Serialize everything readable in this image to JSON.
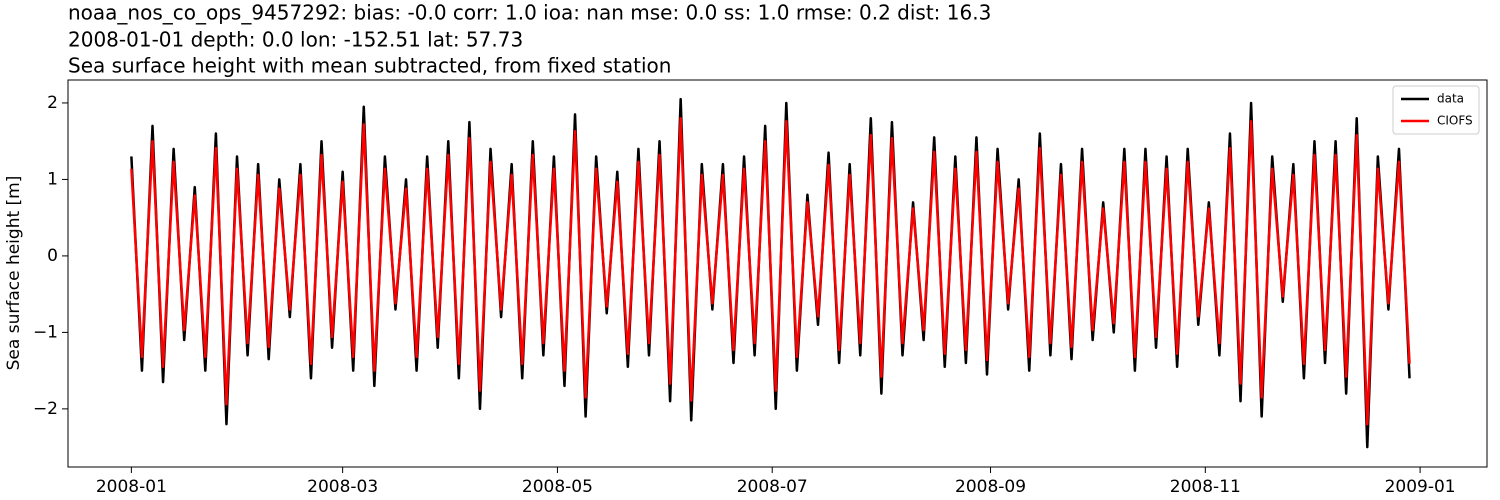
{
  "chart_data": {
    "type": "line",
    "title_lines": [
      "noaa_nos_co_ops_9457292: bias: -0.0  corr: 1.0  ioa: nan  mse: 0.0  ss: 1.0  rmse: 0.2  dist: 16.3",
      "2008-01-01 depth: 0.0 lon: -152.51 lat: 57.73",
      "Sea surface height with mean subtracted, from fixed station"
    ],
    "y_label": "Sea surface height [m]",
    "legend_position": "upper right",
    "xlim": [
      "2007-12-14",
      "2009-01-20"
    ],
    "xticks": [
      {
        "value": "2008-01-01",
        "label": "2008-01"
      },
      {
        "value": "2008-03-01",
        "label": "2008-03"
      },
      {
        "value": "2008-05-01",
        "label": "2008-05"
      },
      {
        "value": "2008-07-01",
        "label": "2008-07"
      },
      {
        "value": "2008-09-01",
        "label": "2008-09"
      },
      {
        "value": "2008-11-01",
        "label": "2008-11"
      },
      {
        "value": "2009-01-01",
        "label": "2009-01"
      }
    ],
    "ylim": [
      -2.76,
      2.3
    ],
    "yticks": [
      {
        "value": -2,
        "label": "−2"
      },
      {
        "value": -1,
        "label": "−1"
      },
      0,
      1,
      2
    ],
    "x": [
      "2008-01-01",
      "2008-01-04",
      "2008-01-07",
      "2008-01-10",
      "2008-01-13",
      "2008-01-16",
      "2008-01-19",
      "2008-01-22",
      "2008-01-25",
      "2008-01-28",
      "2008-01-31",
      "2008-02-03",
      "2008-02-06",
      "2008-02-09",
      "2008-02-12",
      "2008-02-15",
      "2008-02-18",
      "2008-02-21",
      "2008-02-24",
      "2008-02-27",
      "2008-03-01",
      "2008-03-04",
      "2008-03-07",
      "2008-03-10",
      "2008-03-13",
      "2008-03-16",
      "2008-03-19",
      "2008-03-22",
      "2008-03-25",
      "2008-03-28",
      "2008-03-31",
      "2008-04-03",
      "2008-04-06",
      "2008-04-09",
      "2008-04-12",
      "2008-04-15",
      "2008-04-18",
      "2008-04-21",
      "2008-04-24",
      "2008-04-27",
      "2008-04-30",
      "2008-05-03",
      "2008-05-06",
      "2008-05-09",
      "2008-05-12",
      "2008-05-15",
      "2008-05-18",
      "2008-05-21",
      "2008-05-24",
      "2008-05-27",
      "2008-05-30",
      "2008-06-02",
      "2008-06-05",
      "2008-06-08",
      "2008-06-11",
      "2008-06-14",
      "2008-06-17",
      "2008-06-20",
      "2008-06-23",
      "2008-06-26",
      "2008-06-29",
      "2008-07-02",
      "2008-07-05",
      "2008-07-08",
      "2008-07-11",
      "2008-07-14",
      "2008-07-17",
      "2008-07-20",
      "2008-07-23",
      "2008-07-26",
      "2008-07-29",
      "2008-08-01",
      "2008-08-04",
      "2008-08-07",
      "2008-08-10",
      "2008-08-13",
      "2008-08-16",
      "2008-08-19",
      "2008-08-22",
      "2008-08-25",
      "2008-08-28",
      "2008-08-31",
      "2008-09-03",
      "2008-09-06",
      "2008-09-09",
      "2008-09-12",
      "2008-09-15",
      "2008-09-18",
      "2008-09-21",
      "2008-09-24",
      "2008-09-27",
      "2008-09-30",
      "2008-10-03",
      "2008-10-06",
      "2008-10-09",
      "2008-10-12",
      "2008-10-15",
      "2008-10-18",
      "2008-10-21",
      "2008-10-24",
      "2008-10-27",
      "2008-10-30",
      "2008-11-02",
      "2008-11-05",
      "2008-11-08",
      "2008-11-11",
      "2008-11-14",
      "2008-11-17",
      "2008-11-20",
      "2008-11-23",
      "2008-11-26",
      "2008-11-29",
      "2008-12-02",
      "2008-12-05",
      "2008-12-08",
      "2008-12-11",
      "2008-12-14",
      "2008-12-17",
      "2008-12-20",
      "2008-12-23",
      "2008-12-26",
      "2008-12-29"
    ],
    "series": [
      {
        "name": "data",
        "color": "#000000",
        "values": [
          1.3,
          -1.5,
          1.7,
          -1.65,
          1.4,
          -1.1,
          0.9,
          -1.5,
          1.6,
          -2.2,
          1.3,
          -1.3,
          1.2,
          -1.35,
          1.0,
          -0.8,
          1.2,
          -1.6,
          1.5,
          -1.2,
          1.1,
          -1.5,
          1.95,
          -1.7,
          1.3,
          -0.7,
          1.0,
          -1.5,
          1.3,
          -1.2,
          1.5,
          -1.6,
          1.75,
          -2.0,
          1.4,
          -0.8,
          1.2,
          -1.6,
          1.5,
          -1.3,
          1.3,
          -1.7,
          1.85,
          -2.1,
          1.3,
          -0.75,
          1.1,
          -1.45,
          1.4,
          -1.3,
          1.5,
          -1.9,
          2.05,
          -2.15,
          1.2,
          -0.7,
          1.2,
          -1.4,
          1.3,
          -1.3,
          1.7,
          -2.0,
          2.0,
          -1.5,
          0.8,
          -0.9,
          1.35,
          -1.4,
          1.2,
          -1.3,
          1.8,
          -1.8,
          1.75,
          -1.3,
          0.7,
          -1.1,
          1.55,
          -1.45,
          1.3,
          -1.4,
          1.55,
          -1.55,
          1.4,
          -0.7,
          1.0,
          -1.5,
          1.6,
          -1.3,
          1.2,
          -1.35,
          1.4,
          -1.1,
          0.7,
          -1.0,
          1.4,
          -1.5,
          1.4,
          -1.2,
          1.3,
          -1.45,
          1.4,
          -0.9,
          0.7,
          -1.3,
          1.6,
          -1.9,
          2.0,
          -2.1,
          1.3,
          -0.6,
          1.2,
          -1.6,
          1.5,
          -1.4,
          1.5,
          -1.8,
          1.8,
          -2.5,
          1.3,
          -0.7,
          1.4,
          -1.6
        ]
      },
      {
        "name": "CIOFS",
        "color": "#ff0000",
        "values": [
          1.14,
          -1.32,
          1.5,
          -1.45,
          1.23,
          -0.97,
          0.79,
          -1.32,
          1.41,
          -1.94,
          1.14,
          -1.14,
          1.06,
          -1.19,
          0.88,
          -0.7,
          1.06,
          -1.41,
          1.32,
          -1.06,
          0.97,
          -1.32,
          1.72,
          -1.5,
          1.14,
          -0.62,
          0.88,
          -1.32,
          1.14,
          -1.06,
          1.32,
          -1.41,
          1.54,
          -1.76,
          1.23,
          -0.7,
          1.06,
          -1.41,
          1.32,
          -1.14,
          1.14,
          -1.5,
          1.63,
          -1.85,
          1.14,
          -0.66,
          0.97,
          -1.28,
          1.23,
          -1.14,
          1.32,
          -1.67,
          1.8,
          -1.89,
          1.06,
          -0.62,
          1.06,
          -1.23,
          1.14,
          -1.14,
          1.5,
          -1.76,
          1.76,
          -1.32,
          0.7,
          -0.79,
          1.19,
          -1.23,
          1.06,
          -1.14,
          1.58,
          -1.58,
          1.54,
          -1.14,
          0.62,
          -0.97,
          1.36,
          -1.28,
          1.14,
          -1.23,
          1.36,
          -1.36,
          1.23,
          -0.62,
          0.88,
          -1.32,
          1.41,
          -1.14,
          1.06,
          -1.19,
          1.23,
          -0.97,
          0.62,
          -0.88,
          1.23,
          -1.32,
          1.23,
          -1.06,
          1.14,
          -1.28,
          1.23,
          -0.79,
          0.62,
          -1.14,
          1.41,
          -1.67,
          1.76,
          -1.85,
          1.14,
          -0.53,
          1.06,
          -1.41,
          1.32,
          -1.23,
          1.32,
          -1.58,
          1.58,
          -2.2,
          1.14,
          -0.62,
          1.23,
          -1.41
        ]
      }
    ]
  }
}
